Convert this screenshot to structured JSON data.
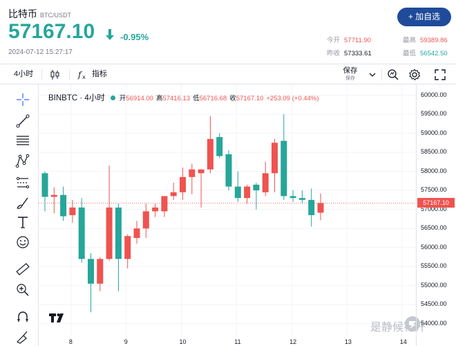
{
  "header": {
    "pair": "比特币",
    "pair_sub": "BTC/USDT",
    "price": "57167.10",
    "change": "-0.95%",
    "timestamp": "2024-07-12 15:27:17",
    "add_button": "+ 加自选",
    "stats": {
      "open_label": "今开",
      "open": "57711.90",
      "high_label": "最高",
      "high": "59389.86",
      "prev_label": "昨收",
      "prev": "57333.61",
      "low_label": "最低",
      "low": "56542.50"
    }
  },
  "toolbar": {
    "interval": "4小时",
    "indicators": "指标",
    "save": "保存",
    "save_sub": "保存"
  },
  "legend": {
    "symbol": "BINBTC · 4小时",
    "open_label": "开",
    "open": "56914.00",
    "high_label": "高",
    "high": "57416.13",
    "low_label": "低",
    "low": "56716.68",
    "close_label": "收",
    "close": "57167.10",
    "change": "+253.09 (+0.44%)"
  },
  "watermark": "是静候花开",
  "colors": {
    "up": "#ef5350",
    "down": "#26a69a",
    "accent": "#1f4b9a"
  },
  "chart_data": {
    "type": "candlestick",
    "x_ticks": [
      "8",
      "9",
      "10",
      "11",
      "12",
      "13",
      "14"
    ],
    "y_ticks": [
      "60000.00",
      "59500.00",
      "59000.00",
      "58500.00",
      "58000.00",
      "57500.00",
      "57000.00",
      "56500.00",
      "56000.00",
      "55500.00",
      "55000.00",
      "54500.00",
      "54000.00"
    ],
    "ylim": [
      53850,
      60100
    ],
    "last_price": "57167.10",
    "candles": [
      {
        "o": 57950,
        "h": 58000,
        "l": 56950,
        "c": 57330
      },
      {
        "o": 57330,
        "h": 57580,
        "l": 56900,
        "c": 57380
      },
      {
        "o": 57380,
        "h": 57600,
        "l": 56700,
        "c": 56820
      },
      {
        "o": 56850,
        "h": 57250,
        "l": 56650,
        "c": 57050
      },
      {
        "o": 57050,
        "h": 57300,
        "l": 55600,
        "c": 55700
      },
      {
        "o": 55700,
        "h": 55850,
        "l": 54300,
        "c": 55050
      },
      {
        "o": 55050,
        "h": 55750,
        "l": 54850,
        "c": 55700
      },
      {
        "o": 55700,
        "h": 58150,
        "l": 55650,
        "c": 57050
      },
      {
        "o": 57050,
        "h": 57150,
        "l": 54850,
        "c": 55700
      },
      {
        "o": 55700,
        "h": 56350,
        "l": 55450,
        "c": 56300
      },
      {
        "o": 56250,
        "h": 56700,
        "l": 56100,
        "c": 56500
      },
      {
        "o": 56500,
        "h": 57150,
        "l": 56250,
        "c": 56950
      },
      {
        "o": 56950,
        "h": 57150,
        "l": 56800,
        "c": 57050
      },
      {
        "o": 56950,
        "h": 57350,
        "l": 56800,
        "c": 57350
      },
      {
        "o": 57350,
        "h": 57700,
        "l": 57250,
        "c": 57450
      },
      {
        "o": 57450,
        "h": 58100,
        "l": 57250,
        "c": 57850
      },
      {
        "o": 57850,
        "h": 58200,
        "l": 57400,
        "c": 58050
      },
      {
        "o": 57950,
        "h": 58050,
        "l": 57050,
        "c": 58050
      },
      {
        "o": 58050,
        "h": 59450,
        "l": 57950,
        "c": 58850
      },
      {
        "o": 58900,
        "h": 59000,
        "l": 58350,
        "c": 58400
      },
      {
        "o": 58450,
        "h": 58550,
        "l": 57500,
        "c": 57600
      },
      {
        "o": 57600,
        "h": 58000,
        "l": 57200,
        "c": 57300
      },
      {
        "o": 57300,
        "h": 57650,
        "l": 57150,
        "c": 57600
      },
      {
        "o": 57650,
        "h": 57700,
        "l": 57000,
        "c": 57500
      },
      {
        "o": 57450,
        "h": 58250,
        "l": 57350,
        "c": 57950
      },
      {
        "o": 57950,
        "h": 58850,
        "l": 57450,
        "c": 58750
      },
      {
        "o": 58800,
        "h": 59500,
        "l": 57250,
        "c": 57350
      },
      {
        "o": 57350,
        "h": 57500,
        "l": 57200,
        "c": 57300
      },
      {
        "o": 57300,
        "h": 57500,
        "l": 57150,
        "c": 57250
      },
      {
        "o": 57250,
        "h": 57550,
        "l": 56550,
        "c": 56850
      },
      {
        "o": 56914,
        "h": 57416,
        "l": 56717,
        "c": 57167
      }
    ]
  }
}
